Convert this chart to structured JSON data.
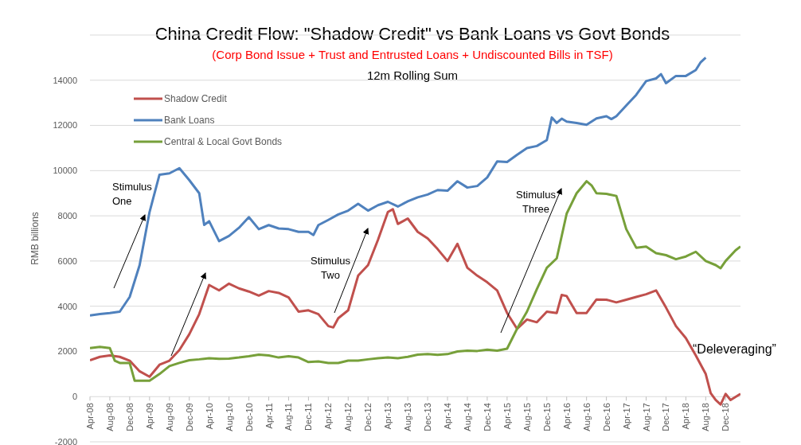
{
  "chart_data": {
    "type": "line",
    "title": "China Credit Flow: \"Shadow Credit\" vs Bank Loans vs Govt Bonds",
    "subtitle": "(Corp Bond Issue + Trust and Entrusted Loans + Undiscounted Bills in TSF)",
    "ylabel": "RMB billions",
    "annotations": [
      "12m Rolling Sum",
      "Stimulus One",
      "Stimulus Two",
      "Stimulus Three",
      "“Deleveraging”"
    ],
    "xlim": [
      "2008-04",
      "2019-03"
    ],
    "xticks": [
      {
        "value": "2008-04",
        "label": "Apr-08"
      },
      {
        "value": "2008-08",
        "label": "Aug-08"
      },
      {
        "value": "2008-12",
        "label": "Dec-08"
      },
      {
        "value": "2009-04",
        "label": "Apr-09"
      },
      {
        "value": "2009-08",
        "label": "Aug-09"
      },
      {
        "value": "2009-12",
        "label": "Dec-09"
      },
      {
        "value": "2010-04",
        "label": "Apr-10"
      },
      {
        "value": "2010-08",
        "label": "Aug-10"
      },
      {
        "value": "2010-12",
        "label": "Dec-10"
      },
      {
        "value": "2011-04",
        "label": "Apr-11"
      },
      {
        "value": "2011-08",
        "label": "Aug-11"
      },
      {
        "value": "2011-12",
        "label": "Dec-11"
      },
      {
        "value": "2012-04",
        "label": "Apr-12"
      },
      {
        "value": "2012-08",
        "label": "Aug-12"
      },
      {
        "value": "2012-12",
        "label": "Dec-12"
      },
      {
        "value": "2013-04",
        "label": "Apr-13"
      },
      {
        "value": "2013-08",
        "label": "Aug-13"
      },
      {
        "value": "2013-12",
        "label": "Dec-13"
      },
      {
        "value": "2014-04",
        "label": "Apr-14"
      },
      {
        "value": "2014-08",
        "label": "Aug-14"
      },
      {
        "value": "2014-12",
        "label": "Dec-14"
      },
      {
        "value": "2015-04",
        "label": "Apr-15"
      },
      {
        "value": "2015-08",
        "label": "Aug-15"
      },
      {
        "value": "2015-12",
        "label": "Dec-15"
      },
      {
        "value": "2016-04",
        "label": "Apr-16"
      },
      {
        "value": "2016-08",
        "label": "Aug-16"
      },
      {
        "value": "2016-12",
        "label": "Dec-16"
      },
      {
        "value": "2017-04",
        "label": "Apr-17"
      },
      {
        "value": "2017-08",
        "label": "Aug-17"
      },
      {
        "value": "2017-12",
        "label": "Dec-17"
      },
      {
        "value": "2018-04",
        "label": "Apr-18"
      },
      {
        "value": "2018-08",
        "label": "Aug-18"
      },
      {
        "value": "2018-12",
        "label": "Dec-18"
      }
    ],
    "ylim": [
      -2000,
      16000
    ],
    "yticks": [
      -2000,
      0,
      2000,
      4000,
      6000,
      8000,
      10000,
      12000,
      14000
    ],
    "grid": "y",
    "legend": "top left",
    "marker": "none",
    "line_style": "solid",
    "series": [
      {
        "name": "Shadow Credit",
        "color": "#c0504d",
        "x": [
          "2008-04",
          "2008-06",
          "2008-08",
          "2008-10",
          "2008-12",
          "2009-02",
          "2009-04",
          "2009-06",
          "2009-08",
          "2009-10",
          "2009-12",
          "2010-02",
          "2010-04",
          "2010-06",
          "2010-08",
          "2010-10",
          "2010-12",
          "2011-02",
          "2011-04",
          "2011-06",
          "2011-08",
          "2011-10",
          "2011-12",
          "2012-02",
          "2012-04",
          "2012-05",
          "2012-06",
          "2012-08",
          "2012-10",
          "2012-12",
          "2013-02",
          "2013-04",
          "2013-05",
          "2013-06",
          "2013-08",
          "2013-10",
          "2013-12",
          "2014-02",
          "2014-04",
          "2014-06",
          "2014-08",
          "2014-10",
          "2014-12",
          "2015-02",
          "2015-04",
          "2015-06",
          "2015-08",
          "2015-10",
          "2015-12",
          "2016-02",
          "2016-03",
          "2016-04",
          "2016-06",
          "2016-08",
          "2016-10",
          "2016-12",
          "2017-02",
          "2017-04",
          "2017-06",
          "2017-08",
          "2017-10",
          "2017-12",
          "2018-02",
          "2018-04",
          "2018-06",
          "2018-08",
          "2018-09",
          "2018-10",
          "2018-11",
          "2018-12",
          "2019-01",
          "2019-03"
        ],
        "values": [
          1610,
          1760,
          1820,
          1760,
          1590,
          1120,
          880,
          1410,
          1590,
          2060,
          2760,
          3650,
          4940,
          4700,
          5000,
          4790,
          4650,
          4470,
          4670,
          4590,
          4390,
          3760,
          3820,
          3650,
          3120,
          3060,
          3470,
          3820,
          5350,
          5820,
          6940,
          8170,
          8290,
          7640,
          7880,
          7290,
          7000,
          6530,
          6000,
          6760,
          5700,
          5350,
          5060,
          4700,
          3700,
          3000,
          3410,
          3290,
          3760,
          3700,
          4500,
          4450,
          3700,
          3700,
          4300,
          4290,
          4170,
          4290,
          4410,
          4530,
          4700,
          3940,
          3120,
          2590,
          1820,
          1000,
          150,
          -150,
          -350,
          120,
          -150,
          120
        ]
      },
      {
        "name": "Bank Loans",
        "color": "#4f81bd",
        "x": [
          "2008-04",
          "2008-06",
          "2008-08",
          "2008-10",
          "2008-12",
          "2009-02",
          "2009-04",
          "2009-06",
          "2009-08",
          "2009-10",
          "2009-12",
          "2010-02",
          "2010-03",
          "2010-04",
          "2010-06",
          "2010-08",
          "2010-10",
          "2010-12",
          "2011-02",
          "2011-04",
          "2011-06",
          "2011-08",
          "2011-10",
          "2011-12",
          "2012-01",
          "2012-02",
          "2012-04",
          "2012-06",
          "2012-08",
          "2012-10",
          "2012-12",
          "2013-02",
          "2013-04",
          "2013-06",
          "2013-08",
          "2013-10",
          "2013-12",
          "2014-02",
          "2014-04",
          "2014-06",
          "2014-08",
          "2014-10",
          "2014-12",
          "2015-02",
          "2015-04",
          "2015-06",
          "2015-08",
          "2015-10",
          "2015-12",
          "2016-01",
          "2016-02",
          "2016-03",
          "2016-04",
          "2016-06",
          "2016-08",
          "2016-10",
          "2016-12",
          "2017-01",
          "2017-02",
          "2017-04",
          "2017-06",
          "2017-08",
          "2017-10",
          "2017-11",
          "2017-12",
          "2018-02",
          "2018-04",
          "2018-06",
          "2018-07",
          "2018-08"
        ],
        "values": [
          3590,
          3650,
          3700,
          3760,
          4410,
          5820,
          8170,
          9820,
          9880,
          10110,
          9580,
          9000,
          7600,
          7760,
          6880,
          7110,
          7470,
          7940,
          7410,
          7590,
          7440,
          7410,
          7290,
          7290,
          7150,
          7590,
          7820,
          8060,
          8230,
          8530,
          8230,
          8470,
          8620,
          8410,
          8640,
          8820,
          8940,
          9140,
          9110,
          9530,
          9250,
          9320,
          9700,
          10410,
          10380,
          10700,
          11000,
          11090,
          11350,
          12350,
          12110,
          12300,
          12170,
          12110,
          12030,
          12310,
          12410,
          12280,
          12410,
          12880,
          13350,
          13960,
          14080,
          14270,
          13870,
          14190,
          14190,
          14450,
          14800,
          15000
        ]
      },
      {
        "name": "Central & Local Govt Bonds",
        "color": "#77a03a",
        "x": [
          "2008-04",
          "2008-06",
          "2008-08",
          "2008-09",
          "2008-10",
          "2008-12",
          "2009-01",
          "2009-04",
          "2009-06",
          "2009-08",
          "2009-10",
          "2009-12",
          "2010-02",
          "2010-04",
          "2010-06",
          "2010-08",
          "2010-10",
          "2010-12",
          "2011-02",
          "2011-04",
          "2011-06",
          "2011-08",
          "2011-10",
          "2011-12",
          "2012-02",
          "2012-04",
          "2012-06",
          "2012-08",
          "2012-10",
          "2012-12",
          "2013-02",
          "2013-04",
          "2013-06",
          "2013-08",
          "2013-10",
          "2013-12",
          "2014-02",
          "2014-04",
          "2014-06",
          "2014-08",
          "2014-10",
          "2014-12",
          "2015-02",
          "2015-04",
          "2015-06",
          "2015-08",
          "2015-10",
          "2015-12",
          "2016-02",
          "2016-04",
          "2016-06",
          "2016-08",
          "2016-09",
          "2016-10",
          "2016-12",
          "2017-02",
          "2017-04",
          "2017-06",
          "2017-08",
          "2017-10",
          "2017-12",
          "2018-02",
          "2018-04",
          "2018-06",
          "2018-08",
          "2018-10",
          "2018-11",
          "2018-12",
          "2019-02",
          "2019-03"
        ],
        "values": [
          2150,
          2200,
          2150,
          1590,
          1490,
          1490,
          700,
          700,
          1000,
          1350,
          1490,
          1610,
          1650,
          1700,
          1670,
          1680,
          1730,
          1790,
          1860,
          1820,
          1730,
          1790,
          1730,
          1530,
          1560,
          1490,
          1490,
          1590,
          1590,
          1650,
          1700,
          1730,
          1700,
          1760,
          1860,
          1880,
          1850,
          1880,
          2000,
          2030,
          2020,
          2080,
          2030,
          2120,
          3000,
          3760,
          4760,
          5700,
          6120,
          8100,
          9000,
          9530,
          9350,
          9000,
          8970,
          8880,
          7410,
          6590,
          6640,
          6350,
          6260,
          6080,
          6200,
          6410,
          6000,
          5820,
          5680,
          6000,
          6470,
          6640
        ]
      }
    ]
  }
}
